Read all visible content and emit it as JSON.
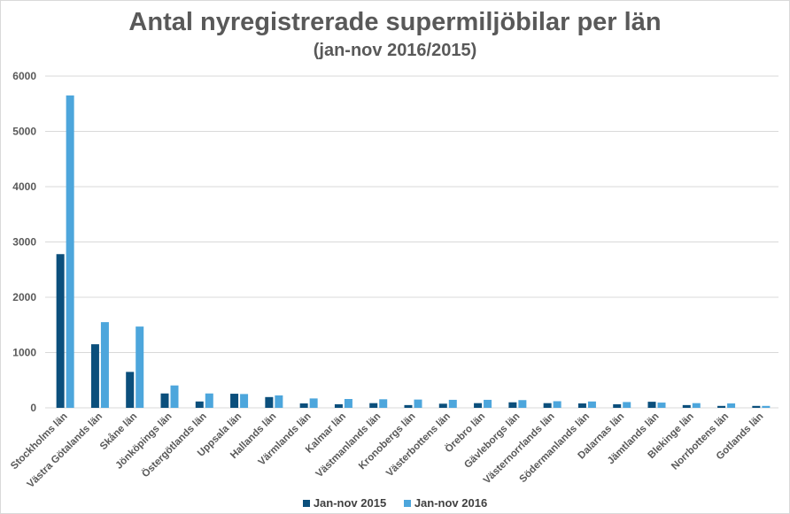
{
  "chart_data": {
    "type": "bar",
    "title": "Antal nyregistrerade supermiljöbilar per län",
    "subtitle": "(jan-nov 2016/2015)",
    "xlabel": "",
    "ylabel": "",
    "ylim": [
      0,
      6000
    ],
    "yticks": [
      "0",
      "1000",
      "2000",
      "3000",
      "4000",
      "5000",
      "6000"
    ],
    "grid": true,
    "legend": "bottom",
    "categories": [
      "Stockholms län",
      "Västra Götalands län",
      "Skåne län",
      "Jönköpings län",
      "Östergötlands län",
      "Uppsala län",
      "Hallands län",
      "Värmlands län",
      "Kalmar län",
      "Västmanlands län",
      "Kronobergs län",
      "Västerbottens län",
      "Örebro län",
      "Gävleborgs län",
      "Västernorrlands län",
      "Södermanlands län",
      "Dalarnas län",
      "Jämtlands län",
      "Blekinge län",
      "Norrbottens län",
      "Gotlands län"
    ],
    "series": [
      {
        "name": "Jan-nov 2015",
        "color": "#0b4f7c",
        "values": [
          2780,
          1150,
          650,
          260,
          115,
          255,
          195,
          80,
          65,
          85,
          50,
          75,
          85,
          100,
          85,
          80,
          65,
          110,
          50,
          35,
          35
        ]
      },
      {
        "name": "Jan-nov 2016",
        "color": "#4da6dc",
        "values": [
          5650,
          1550,
          1470,
          405,
          260,
          250,
          225,
          170,
          160,
          155,
          150,
          145,
          145,
          140,
          120,
          115,
          105,
          95,
          85,
          80,
          35
        ]
      }
    ]
  }
}
